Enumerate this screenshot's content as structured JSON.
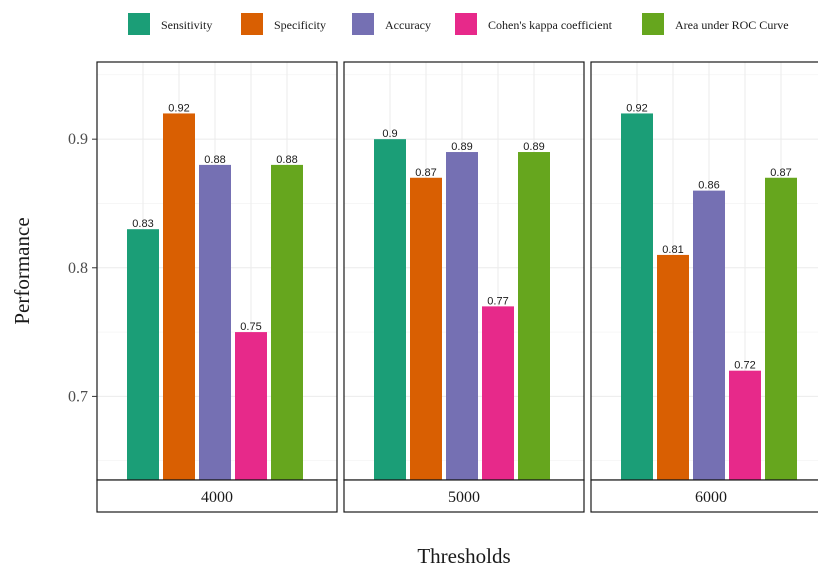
{
  "chart_data": {
    "type": "bar",
    "xlabel": "Thresholds",
    "ylabel": "Performance",
    "ylim": [
      0.635,
      0.96
    ],
    "y_ticks": [
      0.7,
      0.8,
      0.9
    ],
    "grid": true,
    "legend_position": "top",
    "panels": [
      "4000",
      "5000",
      "6000"
    ],
    "series": [
      {
        "name": "Sensitivity",
        "color": "#1b9e77",
        "values": [
          0.83,
          0.9,
          0.92
        ]
      },
      {
        "name": "Specificity",
        "color": "#d95f02",
        "values": [
          0.92,
          0.87,
          0.81
        ]
      },
      {
        "name": "Accuracy",
        "color": "#7570b3",
        "values": [
          0.88,
          0.89,
          0.86
        ]
      },
      {
        "name": "Cohen's kappa coefficient",
        "color": "#e7298a",
        "values": [
          0.75,
          0.77,
          0.72
        ]
      },
      {
        "name": "Area under ROC Curve",
        "color": "#66a61e",
        "values": [
          0.88,
          0.89,
          0.87
        ]
      }
    ],
    "data_labels": [
      [
        "0.83",
        "0.9",
        "0.92"
      ],
      [
        "0.92",
        "0.87",
        "0.81"
      ],
      [
        "0.88",
        "0.89",
        "0.86"
      ],
      [
        "0.75",
        "0.77",
        "0.72"
      ],
      [
        "0.88",
        "0.89",
        "0.87"
      ]
    ]
  }
}
